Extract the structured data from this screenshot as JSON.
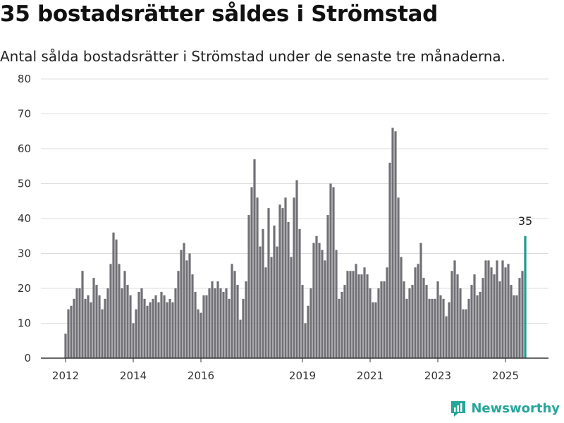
{
  "title": "35 bostadsrätter såldes i Strömstad",
  "subtitle": "Antal sålda bostadsrätter i Strömstad under de senaste tre månaderna.",
  "brand": {
    "name": "Newsworthy",
    "icon": "newsworthy-logo-icon"
  },
  "colors": {
    "bar": "#717076",
    "highlight": "#1a9c8d",
    "grid": "#dcdcdc",
    "axis": "#333333"
  },
  "chart_data": {
    "type": "bar",
    "title": "35 bostadsrätter såldes i Strömstad",
    "subtitle": "Antal sålda bostadsrätter i Strömstad under de senaste tre månaderna.",
    "xlabel": "",
    "ylabel": "",
    "ylim": [
      0,
      80
    ],
    "yticks": [
      0,
      10,
      20,
      30,
      40,
      50,
      60,
      70,
      80
    ],
    "xticks": [
      {
        "label": "2012",
        "index": 0
      },
      {
        "label": "2014",
        "index": 24
      },
      {
        "label": "2016",
        "index": 48
      },
      {
        "label": "2019",
        "index": 84
      },
      {
        "label": "2021",
        "index": 108
      },
      {
        "label": "2023",
        "index": 132
      },
      {
        "label": "2025",
        "index": 156
      }
    ],
    "grid": true,
    "legend": "none",
    "highlight_label": "35",
    "values": [
      7,
      14,
      15,
      17,
      20,
      20,
      25,
      17,
      18,
      16,
      23,
      21,
      18,
      14,
      17,
      20,
      27,
      36,
      34,
      27,
      20,
      25,
      21,
      18,
      10,
      14,
      19,
      20,
      17,
      15,
      16,
      17,
      18,
      16,
      19,
      18,
      16,
      17,
      16,
      20,
      25,
      31,
      33,
      28,
      30,
      24,
      19,
      14,
      13,
      18,
      18,
      20,
      22,
      20,
      22,
      20,
      19,
      20,
      17,
      27,
      25,
      21,
      11,
      17,
      22,
      41,
      49,
      57,
      46,
      32,
      37,
      26,
      43,
      29,
      38,
      32,
      44,
      43,
      46,
      39,
      29,
      46,
      51,
      37,
      21,
      10,
      15,
      20,
      33,
      35,
      33,
      31,
      28,
      41,
      50,
      49,
      31,
      17,
      19,
      21,
      25,
      25,
      25,
      27,
      24,
      24,
      26,
      24,
      20,
      16,
      16,
      20,
      22,
      22,
      26,
      56,
      66,
      65,
      46,
      29,
      22,
      17,
      20,
      21,
      26,
      27,
      33,
      23,
      21,
      17,
      17,
      17,
      22,
      18,
      17,
      12,
      16,
      25,
      28,
      24,
      20,
      14,
      14,
      17,
      21,
      24,
      18,
      19,
      23,
      28,
      28,
      26,
      24,
      28,
      22,
      28,
      26,
      27,
      21,
      18,
      18,
      23,
      25,
      35
    ]
  }
}
